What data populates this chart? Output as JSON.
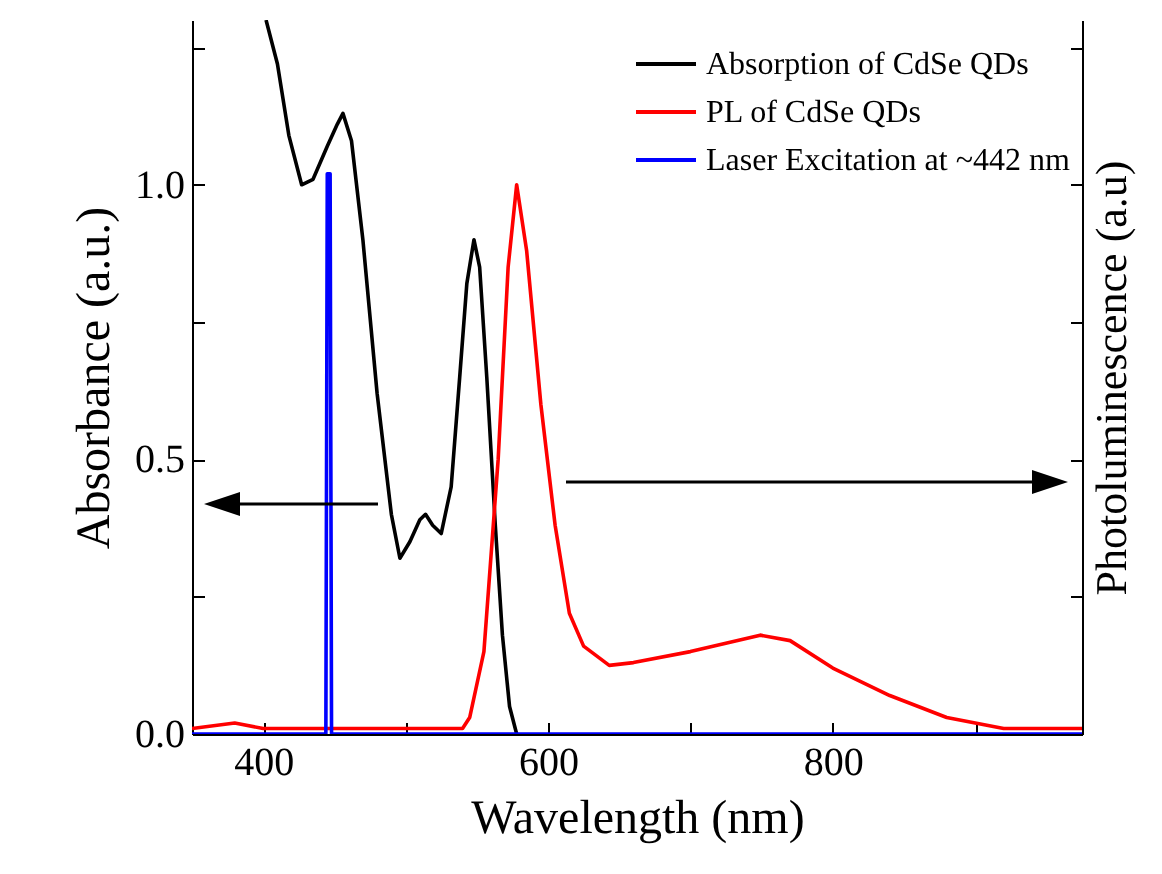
{
  "chart_data": {
    "type": "line",
    "xlabel": "Wavelength (nm)",
    "ylabel": "Absorbance (a.u.)",
    "y2label": "Photoluminescence (a.u)",
    "xlim": [
      350,
      975
    ],
    "xticks": [
      400,
      {
        "value": 500,
        "label": null
      },
      600,
      {
        "value": 700,
        "label": null
      },
      800,
      {
        "value": 900,
        "label": null
      }
    ],
    "ylim": [
      0,
      1.3
    ],
    "yticks": [
      {
        "value": 0,
        "label": "0.0"
      },
      {
        "value": 0.25,
        "label": null
      },
      {
        "value": 0.5,
        "label": "0.5"
      },
      {
        "value": 0.75,
        "label": null
      },
      {
        "value": 1,
        "label": "1.0"
      },
      {
        "value": 1.25,
        "label": null
      }
    ],
    "grid": false,
    "legend": "top right",
    "line_style": "solid",
    "series": [
      {
        "name": "Absorption of CdSe QDs",
        "color": "#000000",
        "x": [
          402,
          410,
          418,
          427,
          435,
          445,
          452,
          456,
          462,
          470,
          480,
          490,
          496,
          503,
          510,
          514,
          519,
          525,
          532,
          538,
          543,
          548,
          552,
          557,
          563,
          568,
          573,
          578
        ],
        "values": [
          1.3,
          1.22,
          1.09,
          1.0,
          1.01,
          1.07,
          1.11,
          1.13,
          1.08,
          0.9,
          0.62,
          0.4,
          0.32,
          0.35,
          0.39,
          0.4,
          0.38,
          0.365,
          0.45,
          0.65,
          0.82,
          0.9,
          0.85,
          0.65,
          0.38,
          0.18,
          0.05,
          0.0
        ]
      },
      {
        "name": "PL of CdSe QDs",
        "color": "#ff0000",
        "x": [
          350,
          380,
          400,
          450,
          500,
          540,
          545,
          555,
          565,
          572,
          578,
          585,
          595,
          605,
          615,
          625,
          643,
          660,
          700,
          749,
          770,
          800,
          840,
          880,
          920,
          975
        ],
        "values": [
          0.01,
          0.02,
          0.01,
          0.01,
          0.01,
          0.01,
          0.03,
          0.15,
          0.5,
          0.85,
          1.0,
          0.88,
          0.6,
          0.38,
          0.22,
          0.16,
          0.125,
          0.13,
          0.15,
          0.18,
          0.17,
          0.12,
          0.07,
          0.03,
          0.01,
          0.01
        ]
      },
      {
        "name": "Laser Excitation at ~442 nm",
        "color": "#0000ff",
        "x": [
          350,
          444,
          445,
          447,
          448,
          975
        ],
        "values": [
          0,
          0,
          1.02,
          1.02,
          0,
          0
        ]
      }
    ]
  }
}
